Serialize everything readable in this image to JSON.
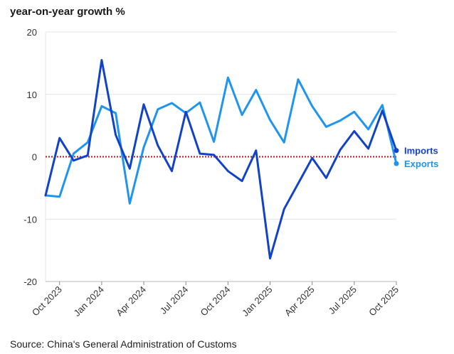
{
  "chart_data": {
    "type": "line",
    "title": "year-on-year growth %",
    "source": "Source: China's General Administration of Customs",
    "xlabel": "",
    "ylabel": "year-on-year growth %",
    "ylim": [
      -20,
      20
    ],
    "yticks": [
      "20",
      "10",
      "0",
      "-10",
      "-20"
    ],
    "ytick_values": [
      20,
      10,
      0,
      -10,
      -20
    ],
    "x": [
      "Sep 2023",
      "Oct 2023",
      "Nov 2023",
      "Dec 2023",
      "Jan 2024",
      "Feb 2024",
      "Mar 2024",
      "Apr 2024",
      "May 2024",
      "Jun 2024",
      "Jul 2024",
      "Aug 2024",
      "Sep 2024",
      "Oct 2024",
      "Nov 2024",
      "Dec 2024",
      "Jan 2025",
      "Feb 2025",
      "Mar 2025",
      "Apr 2025",
      "May 2025",
      "Jun 2025",
      "Jul 2025",
      "Aug 2025",
      "Sep 2025",
      "Oct 2025"
    ],
    "xticks": [
      "Oct 2023",
      "Jan 2024",
      "Apr 2024",
      "Jul 2024",
      "Oct 2024",
      "Jan 2025",
      "Apr 2025",
      "Jul 2025",
      "Oct 2025"
    ],
    "xtick_index": [
      1,
      4,
      7,
      10,
      13,
      16,
      19,
      22,
      25
    ],
    "reference_line": 0,
    "series": [
      {
        "name": "Imports",
        "color": "#1242c8",
        "values": [
          -6.2,
          3.0,
          -0.6,
          0.2,
          15.5,
          3.5,
          -1.9,
          8.4,
          1.8,
          -2.3,
          7.2,
          0.5,
          0.3,
          -2.3,
          -3.9,
          1.0,
          -16.3,
          -8.4,
          -4.3,
          -0.2,
          -3.4,
          1.1,
          4.1,
          1.3,
          7.4,
          1.0
        ]
      },
      {
        "name": "Exports",
        "color": "#1f95f0",
        "values": [
          -6.2,
          -6.4,
          0.5,
          2.3,
          8.1,
          7.0,
          -7.5,
          1.5,
          7.6,
          8.6,
          7.0,
          8.7,
          2.4,
          12.7,
          6.7,
          10.7,
          5.9,
          2.3,
          12.4,
          8.1,
          4.8,
          5.8,
          7.2,
          4.4,
          8.3,
          -1.1
        ]
      }
    ],
    "legend": [
      "Imports",
      "Exports"
    ]
  }
}
